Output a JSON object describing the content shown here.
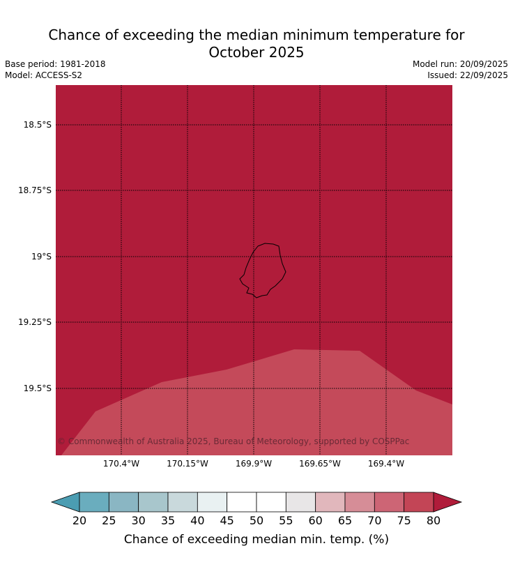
{
  "title": {
    "line1": "Chance of exceeding the median minimum temperature for",
    "line2": "October 2025"
  },
  "meta": {
    "base_period": "Base period: 1981-2018",
    "model": "Model: ACCESS-S2",
    "model_run": "Model run: 20/09/2025",
    "issued": "Issued: 22/09/2025"
  },
  "map": {
    "lat_ticks": [
      "18.5°S",
      "18.75°S",
      "19°S",
      "19.25°S",
      "19.5°S"
    ],
    "lon_ticks": [
      "170.4°W",
      "170.15°W",
      "169.9°W",
      "169.65°W",
      "169.4°W"
    ],
    "copyright": "© Commonwealth of Australia 2025, Bureau of Meteorology, supported by COSPPac",
    "fill_colors": {
      "above_80": "#b01c3a",
      "range_75_80": "#c44a5a"
    }
  },
  "colorbar": {
    "ticks": [
      "20",
      "25",
      "30",
      "35",
      "40",
      "45",
      "50",
      "55",
      "60",
      "65",
      "70",
      "75",
      "80"
    ],
    "colors": [
      "#6aadbe",
      "#8ab6c3",
      "#a8c6cc",
      "#c9d9dc",
      "#e9f1f2",
      "#ffffff",
      "#ffffff",
      "#e8e6e7",
      "#e1b7bc",
      "#d68d97",
      "#cd6575",
      "#c34556"
    ],
    "under_color": "#4b9db2",
    "over_color": "#b01c3a",
    "label": "Chance of exceeding median min. temp. (%)"
  }
}
